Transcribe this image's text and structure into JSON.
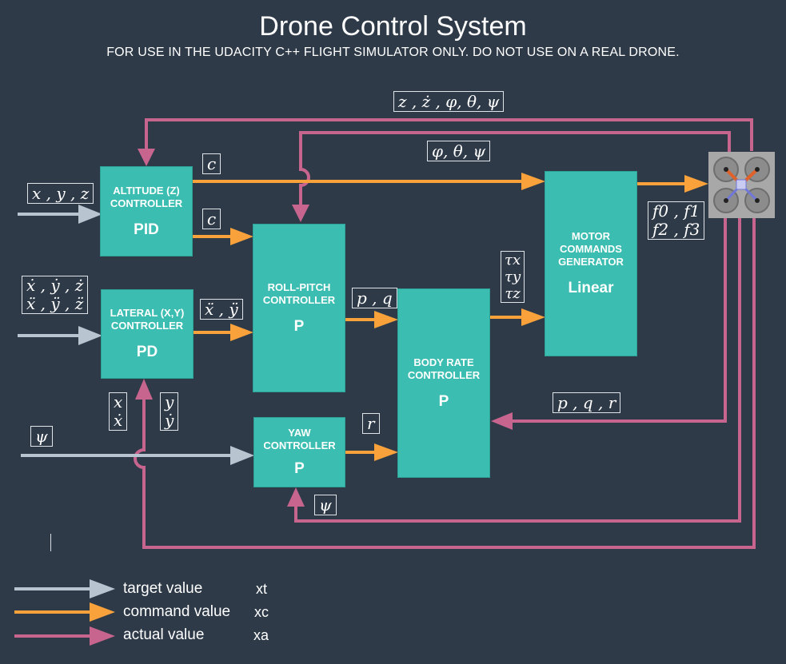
{
  "title": "Drone Control System",
  "subtitle": "FOR USE IN THE UDACITY C++ FLIGHT SIMULATOR ONLY. DO NOT USE ON A REAL DRONE.",
  "colors": {
    "background": "#2e3a48",
    "block": "#3cbdb1",
    "target": "#b8c4cf",
    "command": "#f9a23c",
    "actual": "#c8658f"
  },
  "blocks": {
    "altitude": {
      "name": "ALTITUDE (Z)\nCONTROLLER",
      "kind": "PID"
    },
    "lateral": {
      "name": "LATERAL (X,Y)\nCONTROLLER",
      "kind": "PD"
    },
    "roll_pitch": {
      "name": "ROLL-PITCH\nCONTROLLER",
      "kind": "P"
    },
    "yaw": {
      "name": "YAW\nCONTROLLER",
      "kind": "P"
    },
    "body_rate": {
      "name": "BODY RATE\nCONTROLLER",
      "kind": "P"
    },
    "motor": {
      "name": "MOTOR\nCOMMANDS\nGENERATOR",
      "kind": "Linear"
    }
  },
  "signals": {
    "feedback_top": "z , ż , φ, θ, ψ",
    "feedback_attitude": "φ, θ, ψ",
    "xyz": "x , y , z",
    "xyz_dot": "ẋ , ẏ , ż\nẍ , ÿ , z̈",
    "psi_in": "ψ",
    "c_motor": "c",
    "c_rollpitch": "c",
    "accel": "ẍ , ÿ",
    "pq": "p , q",
    "tau": "τx\nτy\nτz",
    "forces": "f0 , f1\nf2 , f3",
    "pqr": "p , q , r",
    "r": "r",
    "x_feedback": "x\nẋ",
    "y_feedback": "y\nẏ",
    "psi_feedback": "ψ"
  },
  "legend": [
    {
      "label": "target value",
      "symbol": "xt"
    },
    {
      "label": "command value",
      "symbol": "xc"
    },
    {
      "label": "actual value",
      "symbol": "xa"
    }
  ]
}
